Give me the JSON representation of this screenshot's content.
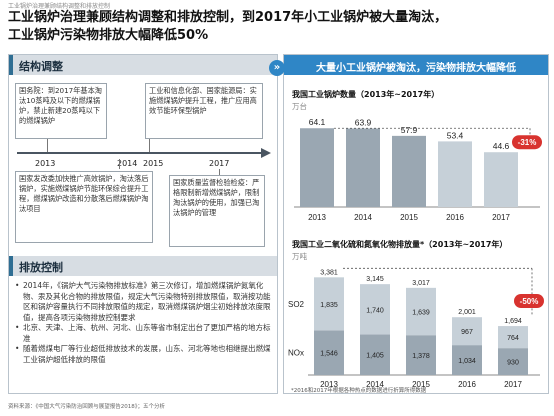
{
  "page": {
    "top_note": "工业锅炉治理兼顾结构调整和排放控制",
    "headline_line1": "工业锅炉治理兼顾结构调整和排放控制，到2017年小工业锅炉被大量淘汰，",
    "headline_line2": "工业锅炉污染物排放大幅降低50%",
    "source": "资料来源：《中国大气污染防治回顾与展望报告2018》；五个分析"
  },
  "left": {
    "section1_title": "结构调整",
    "section2_title": "排放控制",
    "timeline_years": [
      "2013",
      "2014",
      "2015",
      "2017"
    ],
    "box_2013_top": "国务院：到2017年基本淘汰10蒸吨及以下的燃煤锅炉，禁止新建20蒸吨以下的燃煤锅炉",
    "box_2015_top": "工业和信息化部、国家能源局：实施燃煤锅炉提升工程，推广应用高效节能环保型锅炉",
    "box_2014_bottom": "国家发改委加快推广高效锅炉，淘汰落后锅炉，实施燃煤锅炉节能环保综合提升工程，燃煤锅炉改造和分散落后燃煤锅炉淘汰项目",
    "box_2017_bottom": "国家质量监督检验检疫：严格限制新增燃煤锅炉，限制淘汰锅炉的使用，加强已淘汰锅炉的管理",
    "bullets": [
      "2014年，《锅炉大气污染物排放标准》第三次修订，增加燃煤锅炉氮氧化物、汞及其化合物的排放限值，规定大气污染物特别排放限值，取消按功能区和锅炉容量执行不同排放限值的规定，取消燃煤锅炉烟尘初始排放浓度限值，提高各项污染物排放控制要求",
      "北京、天津、上海、杭州、河北、山东等省市制定出台了更加严格的地方标准",
      "随着燃煤电厂等行业超低排放技术的发展，山东、河北等地也相继提出燃煤工业锅炉超低排放的限值"
    ]
  },
  "right": {
    "header": "大量小工业锅炉被淘汰，污染物排放大幅降低",
    "arrow_glyph": "»",
    "footnote": "*2016和2017年根据各种热点的数据进行折算所得数据"
  },
  "chart_data": [
    {
      "type": "bar",
      "title": "我国工业锅炉数量（2013年~2017年）",
      "ylabel": "万台",
      "categories": [
        "2013",
        "2014",
        "2015",
        "2016",
        "2017"
      ],
      "values": [
        64.1,
        63.9,
        57.9,
        53.4,
        44.6
      ],
      "value_labels": [
        "64.1",
        "63.9",
        "57.9",
        "53.4",
        "44.6"
      ],
      "ylim": [
        0,
        70
      ],
      "annotation": "-31%",
      "colors": {
        "bar_solid": "#9aa7b2",
        "bar_light": "#c6d0d8",
        "badge": "#d8332f"
      }
    },
    {
      "type": "bar",
      "stacked": true,
      "title": "我国工业二氧化硫和氮氧化物排放量*（2013年~2017年）",
      "ylabel": "万吨",
      "categories": [
        "2013",
        "2014",
        "2015",
        "2016",
        "2017"
      ],
      "series": [
        {
          "name": "NOx",
          "values": [
            1546,
            1405,
            1378,
            1034,
            930
          ]
        },
        {
          "name": "SO2",
          "values": [
            1835,
            1740,
            1639,
            967,
            764
          ]
        }
      ],
      "totals": [
        3381,
        3145,
        3017,
        2001,
        1694
      ],
      "ylim": [
        0,
        3600
      ],
      "annotation": "-50%",
      "colors": {
        "nox": "#9aa7b2",
        "so2": "#c6d0d8",
        "badge": "#d8332f"
      }
    }
  ]
}
